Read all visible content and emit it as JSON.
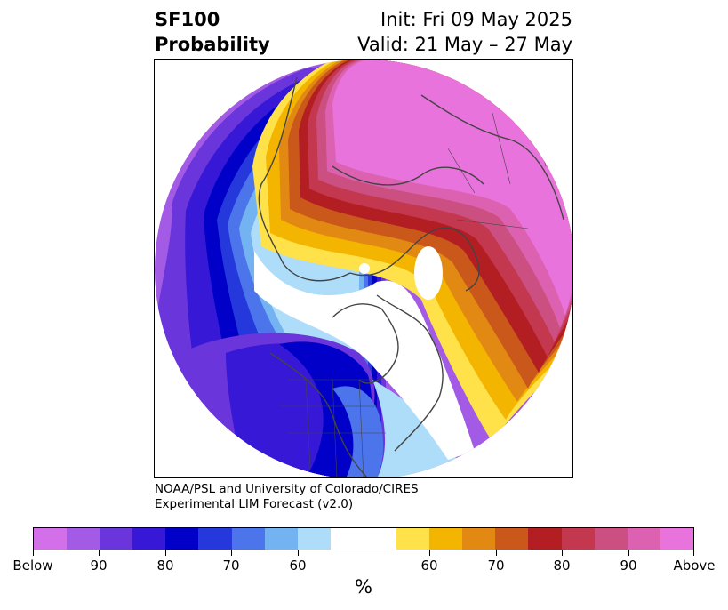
{
  "header": {
    "title_line1": "SF100",
    "title_line2": "Probability",
    "init": "Init: Fri 09 May 2025",
    "valid": "Valid: 21 May – 27 May"
  },
  "credit": {
    "line1": "NOAA/PSL and University of Colorado/CIRES",
    "line2": "Experimental LIM Forecast (v2.0)"
  },
  "colorbar": {
    "unit": "%",
    "colors": [
      "#d36fe9",
      "#a35ae5",
      "#6b35dc",
      "#3718d6",
      "#0000c8",
      "#2438db",
      "#4c75ec",
      "#74b3f2",
      "#aeddf9",
      "#ffffff",
      "#ffffff",
      "#ffe24a",
      "#f3b500",
      "#e28913",
      "#c9581a",
      "#b31e23",
      "#c4384f",
      "#cc4f81",
      "#dc62b1",
      "#e973dc"
    ],
    "labels": [
      "Below",
      "90",
      "80",
      "70",
      "60",
      "60",
      "70",
      "80",
      "90",
      "Above"
    ]
  },
  "map": {
    "colors": {
      "above_max": "#e973dc",
      "above_90": "#dc62b1",
      "above_85": "#cc4f81",
      "above_80": "#c4384f",
      "above_75": "#b31e23",
      "above_70": "#c9581a",
      "above_65": "#e28913",
      "above_60": "#f3b500",
      "above_55": "#ffe24a",
      "below_55": "#aeddf9",
      "below_60": "#74b3f2",
      "below_65": "#4c75ec",
      "below_70": "#2438db",
      "below_75": "#0000c8",
      "below_80": "#3718d6",
      "below_85": "#6b35dc",
      "below_90": "#a35ae5",
      "below_max": "#d36fe9",
      "coast": "#444444"
    }
  }
}
